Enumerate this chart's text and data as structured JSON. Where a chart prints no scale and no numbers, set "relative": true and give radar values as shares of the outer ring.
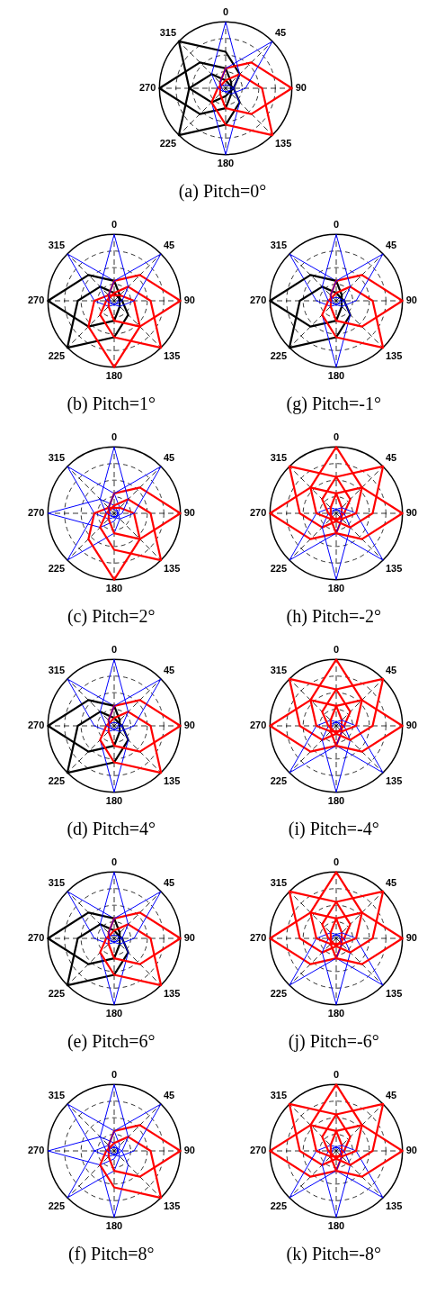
{
  "chart_data": [
    {
      "type": "radar",
      "title": "(a) Pitch=0°",
      "categories": [
        "0",
        "45",
        "90",
        "135",
        "180",
        "225",
        "270",
        "315"
      ],
      "relative": true,
      "grid": true,
      "legend": false,
      "series": [
        {
          "color": "#0000ff",
          "values": [
            1,
            0.3,
            0.12,
            0.06,
            0.05,
            0.06,
            0.12,
            0.3
          ]
        },
        {
          "color": "#0000ff",
          "values": [
            0.3,
            1,
            0.3,
            0.12,
            0.06,
            0.05,
            0.06,
            0.12
          ]
        },
        {
          "color": "#ff0000",
          "values": [
            0.3,
            0.55,
            1,
            0.55,
            0.3,
            0.12,
            0.08,
            0.12
          ]
        },
        {
          "color": "#ff0000",
          "values": [
            0.12,
            0.3,
            0.55,
            1,
            0.55,
            0.3,
            0.12,
            0.08
          ]
        },
        {
          "color": "#0000ff",
          "values": [
            0.05,
            0.06,
            0.12,
            0.3,
            1,
            0.3,
            0.12,
            0.06
          ]
        },
        {
          "color": "#000000",
          "values": [
            0.12,
            0.08,
            0.12,
            0.3,
            0.55,
            1,
            0.55,
            0.3
          ]
        },
        {
          "color": "#000000",
          "values": [
            0.3,
            0.12,
            0.08,
            0.12,
            0.3,
            0.55,
            1,
            0.55
          ]
        },
        {
          "color": "#000000",
          "values": [
            0.55,
            0.3,
            0.12,
            0.08,
            0.12,
            0.3,
            0.55,
            1
          ]
        }
      ]
    },
    {
      "type": "radar",
      "title": "(b) Pitch=1°",
      "categories": [
        "0",
        "45",
        "90",
        "135",
        "180",
        "225",
        "270",
        "315"
      ],
      "relative": true,
      "grid": true,
      "legend": false,
      "series": [
        {
          "color": "#0000ff",
          "values": [
            1,
            0.3,
            0.12,
            0.06,
            0.05,
            0.06,
            0.12,
            0.3
          ]
        },
        {
          "color": "#0000ff",
          "values": [
            0.3,
            1,
            0.3,
            0.12,
            0.06,
            0.05,
            0.06,
            0.12
          ]
        },
        {
          "color": "#ff0000",
          "values": [
            0.3,
            0.55,
            1,
            0.55,
            0.3,
            0.12,
            0.08,
            0.12
          ]
        },
        {
          "color": "#ff0000",
          "values": [
            0.12,
            0.3,
            0.55,
            1,
            0.55,
            0.3,
            0.12,
            0.08
          ]
        },
        {
          "color": "#ff0000",
          "values": [
            0.08,
            0.12,
            0.3,
            0.55,
            1,
            0.55,
            0.3,
            0.12
          ]
        },
        {
          "color": "#000000",
          "values": [
            0.12,
            0.08,
            0.12,
            0.3,
            0.55,
            1,
            0.55,
            0.3
          ]
        },
        {
          "color": "#000000",
          "values": [
            0.3,
            0.12,
            0.08,
            0.12,
            0.3,
            0.55,
            1,
            0.55
          ]
        },
        {
          "color": "#0000ff",
          "values": [
            0.3,
            0.12,
            0.06,
            0.05,
            0.06,
            0.12,
            0.3,
            1
          ]
        }
      ]
    },
    {
      "type": "radar",
      "title": "(g) Pitch=-1°",
      "categories": [
        "0",
        "45",
        "90",
        "135",
        "180",
        "225",
        "270",
        "315"
      ],
      "relative": true,
      "grid": true,
      "legend": false,
      "series": [
        {
          "color": "#0000ff",
          "values": [
            1,
            0.3,
            0.12,
            0.06,
            0.05,
            0.06,
            0.12,
            0.3
          ]
        },
        {
          "color": "#0000ff",
          "values": [
            0.3,
            1,
            0.3,
            0.12,
            0.06,
            0.05,
            0.06,
            0.12
          ]
        },
        {
          "color": "#ff0000",
          "values": [
            0.3,
            0.55,
            1,
            0.55,
            0.3,
            0.12,
            0.08,
            0.12
          ]
        },
        {
          "color": "#ff0000",
          "values": [
            0.12,
            0.3,
            0.55,
            1,
            0.55,
            0.3,
            0.12,
            0.08
          ]
        },
        {
          "color": "#0000ff",
          "values": [
            0.05,
            0.06,
            0.12,
            0.3,
            1,
            0.3,
            0.12,
            0.06
          ]
        },
        {
          "color": "#000000",
          "values": [
            0.12,
            0.08,
            0.12,
            0.3,
            0.55,
            1,
            0.55,
            0.3
          ]
        },
        {
          "color": "#000000",
          "values": [
            0.3,
            0.12,
            0.08,
            0.12,
            0.3,
            0.55,
            1,
            0.55
          ]
        },
        {
          "color": "#0000ff",
          "values": [
            0.3,
            0.12,
            0.06,
            0.05,
            0.06,
            0.12,
            0.3,
            1
          ]
        }
      ]
    },
    {
      "type": "radar",
      "title": "(c) Pitch=2°",
      "categories": [
        "0",
        "45",
        "90",
        "135",
        "180",
        "225",
        "270",
        "315"
      ],
      "relative": true,
      "grid": true,
      "legend": false,
      "series": [
        {
          "color": "#0000ff",
          "values": [
            1,
            0.3,
            0.12,
            0.06,
            0.05,
            0.06,
            0.12,
            0.3
          ]
        },
        {
          "color": "#0000ff",
          "values": [
            0.3,
            1,
            0.3,
            0.12,
            0.06,
            0.05,
            0.06,
            0.12
          ]
        },
        {
          "color": "#ff0000",
          "values": [
            0.3,
            0.55,
            1,
            0.55,
            0.3,
            0.12,
            0.08,
            0.12
          ]
        },
        {
          "color": "#ff0000",
          "values": [
            0.12,
            0.3,
            0.55,
            1,
            0.55,
            0.3,
            0.12,
            0.08
          ]
        },
        {
          "color": "#ff0000",
          "values": [
            0.08,
            0.12,
            0.3,
            0.55,
            1,
            0.55,
            0.3,
            0.12
          ]
        },
        {
          "color": "#0000ff",
          "values": [
            0.06,
            0.05,
            0.06,
            0.12,
            0.3,
            1,
            0.3,
            0.12
          ]
        },
        {
          "color": "#0000ff",
          "values": [
            0.12,
            0.06,
            0.05,
            0.06,
            0.12,
            0.3,
            1,
            0.3
          ]
        },
        {
          "color": "#0000ff",
          "values": [
            0.3,
            0.12,
            0.06,
            0.05,
            0.06,
            0.12,
            0.3,
            1
          ]
        }
      ]
    },
    {
      "type": "radar",
      "title": "(h) Pitch=-2°",
      "categories": [
        "0",
        "45",
        "90",
        "135",
        "180",
        "225",
        "270",
        "315"
      ],
      "relative": true,
      "grid": true,
      "legend": false,
      "series": [
        {
          "color": "#ff0000",
          "values": [
            1,
            0.55,
            0.3,
            0.12,
            0.08,
            0.12,
            0.3,
            0.55
          ]
        },
        {
          "color": "#ff0000",
          "values": [
            0.55,
            1,
            0.55,
            0.3,
            0.12,
            0.08,
            0.12,
            0.3
          ]
        },
        {
          "color": "#ff0000",
          "values": [
            0.3,
            0.55,
            1,
            0.55,
            0.3,
            0.12,
            0.08,
            0.12
          ]
        },
        {
          "color": "#0000ff",
          "values": [
            0.06,
            0.12,
            0.3,
            1,
            0.3,
            0.12,
            0.06,
            0.05
          ]
        },
        {
          "color": "#0000ff",
          "values": [
            0.05,
            0.06,
            0.12,
            0.3,
            1,
            0.3,
            0.12,
            0.06
          ]
        },
        {
          "color": "#0000ff",
          "values": [
            0.06,
            0.05,
            0.06,
            0.12,
            0.3,
            1,
            0.3,
            0.12
          ]
        },
        {
          "color": "#ff0000",
          "values": [
            0.3,
            0.12,
            0.08,
            0.12,
            0.3,
            0.55,
            1,
            0.55
          ]
        },
        {
          "color": "#ff0000",
          "values": [
            0.55,
            0.3,
            0.12,
            0.08,
            0.12,
            0.3,
            0.55,
            1
          ]
        }
      ]
    },
    {
      "type": "radar",
      "title": "(d) Pitch=4°",
      "categories": [
        "0",
        "45",
        "90",
        "135",
        "180",
        "225",
        "270",
        "315"
      ],
      "relative": true,
      "grid": true,
      "legend": false,
      "series": [
        {
          "color": "#0000ff",
          "values": [
            1,
            0.3,
            0.12,
            0.06,
            0.05,
            0.06,
            0.12,
            0.3
          ]
        },
        {
          "color": "#0000ff",
          "values": [
            0.3,
            1,
            0.3,
            0.12,
            0.06,
            0.05,
            0.06,
            0.12
          ]
        },
        {
          "color": "#ff0000",
          "values": [
            0.3,
            0.55,
            1,
            0.55,
            0.3,
            0.12,
            0.08,
            0.12
          ]
        },
        {
          "color": "#ff0000",
          "values": [
            0.12,
            0.3,
            0.55,
            1,
            0.55,
            0.3,
            0.12,
            0.08
          ]
        },
        {
          "color": "#0000ff",
          "values": [
            0.05,
            0.06,
            0.12,
            0.3,
            1,
            0.3,
            0.12,
            0.06
          ]
        },
        {
          "color": "#000000",
          "values": [
            0.12,
            0.08,
            0.12,
            0.3,
            0.55,
            1,
            0.55,
            0.3
          ]
        },
        {
          "color": "#000000",
          "values": [
            0.3,
            0.12,
            0.08,
            0.12,
            0.3,
            0.55,
            1,
            0.55
          ]
        },
        {
          "color": "#0000ff",
          "values": [
            0.3,
            0.12,
            0.06,
            0.05,
            0.06,
            0.12,
            0.3,
            1
          ]
        }
      ]
    },
    {
      "type": "radar",
      "title": "(i) Pitch=-4°",
      "categories": [
        "0",
        "45",
        "90",
        "135",
        "180",
        "225",
        "270",
        "315"
      ],
      "relative": true,
      "grid": true,
      "legend": false,
      "series": [
        {
          "color": "#ff0000",
          "values": [
            1,
            0.55,
            0.3,
            0.12,
            0.08,
            0.12,
            0.3,
            0.55
          ]
        },
        {
          "color": "#ff0000",
          "values": [
            0.55,
            1,
            0.55,
            0.3,
            0.12,
            0.08,
            0.12,
            0.3
          ]
        },
        {
          "color": "#ff0000",
          "values": [
            0.3,
            0.55,
            1,
            0.55,
            0.3,
            0.12,
            0.08,
            0.12
          ]
        },
        {
          "color": "#0000ff",
          "values": [
            0.06,
            0.12,
            0.3,
            1,
            0.3,
            0.12,
            0.06,
            0.05
          ]
        },
        {
          "color": "#0000ff",
          "values": [
            0.05,
            0.06,
            0.12,
            0.3,
            1,
            0.3,
            0.12,
            0.06
          ]
        },
        {
          "color": "#0000ff",
          "values": [
            0.06,
            0.05,
            0.06,
            0.12,
            0.3,
            1,
            0.3,
            0.12
          ]
        },
        {
          "color": "#ff0000",
          "values": [
            0.3,
            0.12,
            0.08,
            0.12,
            0.3,
            0.55,
            1,
            0.55
          ]
        },
        {
          "color": "#ff0000",
          "values": [
            0.55,
            0.3,
            0.12,
            0.08,
            0.12,
            0.3,
            0.55,
            1
          ]
        }
      ]
    },
    {
      "type": "radar",
      "title": "(e) Pitch=6°",
      "categories": [
        "0",
        "45",
        "90",
        "135",
        "180",
        "225",
        "270",
        "315"
      ],
      "relative": true,
      "grid": true,
      "legend": false,
      "series": [
        {
          "color": "#0000ff",
          "values": [
            1,
            0.3,
            0.12,
            0.06,
            0.05,
            0.06,
            0.12,
            0.3
          ]
        },
        {
          "color": "#0000ff",
          "values": [
            0.3,
            1,
            0.3,
            0.12,
            0.06,
            0.05,
            0.06,
            0.12
          ]
        },
        {
          "color": "#ff0000",
          "values": [
            0.3,
            0.55,
            1,
            0.55,
            0.3,
            0.12,
            0.08,
            0.12
          ]
        },
        {
          "color": "#ff0000",
          "values": [
            0.12,
            0.3,
            0.55,
            1,
            0.55,
            0.3,
            0.12,
            0.08
          ]
        },
        {
          "color": "#0000ff",
          "values": [
            0.05,
            0.06,
            0.12,
            0.3,
            1,
            0.3,
            0.12,
            0.06
          ]
        },
        {
          "color": "#000000",
          "values": [
            0.12,
            0.08,
            0.12,
            0.3,
            0.55,
            1,
            0.55,
            0.3
          ]
        },
        {
          "color": "#000000",
          "values": [
            0.3,
            0.12,
            0.08,
            0.12,
            0.3,
            0.55,
            1,
            0.55
          ]
        },
        {
          "color": "#0000ff",
          "values": [
            0.3,
            0.12,
            0.06,
            0.05,
            0.06,
            0.12,
            0.3,
            1
          ]
        }
      ]
    },
    {
      "type": "radar",
      "title": "(j) Pitch=-6°",
      "categories": [
        "0",
        "45",
        "90",
        "135",
        "180",
        "225",
        "270",
        "315"
      ],
      "relative": true,
      "grid": true,
      "legend": false,
      "series": [
        {
          "color": "#ff0000",
          "values": [
            1,
            0.55,
            0.3,
            0.12,
            0.08,
            0.12,
            0.3,
            0.55
          ]
        },
        {
          "color": "#ff0000",
          "values": [
            0.55,
            1,
            0.55,
            0.3,
            0.12,
            0.08,
            0.12,
            0.3
          ]
        },
        {
          "color": "#ff0000",
          "values": [
            0.3,
            0.55,
            1,
            0.55,
            0.3,
            0.12,
            0.08,
            0.12
          ]
        },
        {
          "color": "#0000ff",
          "values": [
            0.06,
            0.12,
            0.3,
            1,
            0.3,
            0.12,
            0.06,
            0.05
          ]
        },
        {
          "color": "#0000ff",
          "values": [
            0.05,
            0.06,
            0.12,
            0.3,
            1,
            0.3,
            0.12,
            0.06
          ]
        },
        {
          "color": "#0000ff",
          "values": [
            0.06,
            0.05,
            0.06,
            0.12,
            0.3,
            1,
            0.3,
            0.12
          ]
        },
        {
          "color": "#ff0000",
          "values": [
            0.3,
            0.12,
            0.08,
            0.12,
            0.3,
            0.55,
            1,
            0.55
          ]
        },
        {
          "color": "#ff0000",
          "values": [
            0.55,
            0.3,
            0.12,
            0.08,
            0.12,
            0.3,
            0.55,
            1
          ]
        }
      ]
    },
    {
      "type": "radar",
      "title": "(f) Pitch=8°",
      "categories": [
        "0",
        "45",
        "90",
        "135",
        "180",
        "225",
        "270",
        "315"
      ],
      "relative": true,
      "grid": true,
      "legend": false,
      "series": [
        {
          "color": "#0000ff",
          "values": [
            1,
            0.3,
            0.12,
            0.06,
            0.05,
            0.06,
            0.12,
            0.3
          ]
        },
        {
          "color": "#0000ff",
          "values": [
            0.3,
            1,
            0.3,
            0.12,
            0.06,
            0.05,
            0.06,
            0.12
          ]
        },
        {
          "color": "#ff0000",
          "values": [
            0.3,
            0.55,
            1,
            0.55,
            0.3,
            0.12,
            0.08,
            0.12
          ]
        },
        {
          "color": "#ff0000",
          "values": [
            0.12,
            0.3,
            0.55,
            1,
            0.55,
            0.3,
            0.12,
            0.08
          ]
        },
        {
          "color": "#0000ff",
          "values": [
            0.05,
            0.06,
            0.12,
            0.3,
            1,
            0.3,
            0.12,
            0.06
          ]
        },
        {
          "color": "#0000ff",
          "values": [
            0.06,
            0.05,
            0.06,
            0.12,
            0.3,
            1,
            0.3,
            0.12
          ]
        },
        {
          "color": "#0000ff",
          "values": [
            0.12,
            0.06,
            0.05,
            0.06,
            0.12,
            0.3,
            1,
            0.3
          ]
        },
        {
          "color": "#0000ff",
          "values": [
            0.3,
            0.12,
            0.06,
            0.05,
            0.06,
            0.12,
            0.3,
            1
          ]
        }
      ]
    },
    {
      "type": "radar",
      "title": "(k) Pitch=-8°",
      "categories": [
        "0",
        "45",
        "90",
        "135",
        "180",
        "225",
        "270",
        "315"
      ],
      "relative": true,
      "grid": true,
      "legend": false,
      "series": [
        {
          "color": "#ff0000",
          "values": [
            1,
            0.55,
            0.3,
            0.12,
            0.08,
            0.12,
            0.3,
            0.55
          ]
        },
        {
          "color": "#ff0000",
          "values": [
            0.55,
            1,
            0.55,
            0.3,
            0.12,
            0.08,
            0.12,
            0.3
          ]
        },
        {
          "color": "#ff0000",
          "values": [
            0.3,
            0.55,
            1,
            0.55,
            0.3,
            0.12,
            0.08,
            0.12
          ]
        },
        {
          "color": "#0000ff",
          "values": [
            0.06,
            0.12,
            0.3,
            1,
            0.3,
            0.12,
            0.06,
            0.05
          ]
        },
        {
          "color": "#0000ff",
          "values": [
            0.05,
            0.06,
            0.12,
            0.3,
            1,
            0.3,
            0.12,
            0.06
          ]
        },
        {
          "color": "#0000ff",
          "values": [
            0.06,
            0.05,
            0.06,
            0.12,
            0.3,
            1,
            0.3,
            0.12
          ]
        },
        {
          "color": "#ff0000",
          "values": [
            0.3,
            0.12,
            0.08,
            0.12,
            0.3,
            0.55,
            1,
            0.55
          ]
        },
        {
          "color": "#ff0000",
          "values": [
            0.55,
            0.3,
            0.12,
            0.08,
            0.12,
            0.3,
            0.55,
            1
          ]
        }
      ]
    }
  ]
}
